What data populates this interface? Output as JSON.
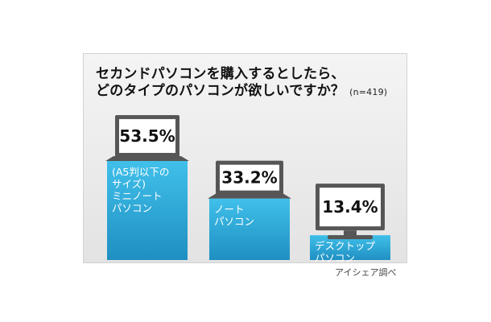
{
  "title_line1": "セカンドパソコンを購入するとしたら、",
  "title_line2": "どのタイプのパソコンが欲しいですか？",
  "sample_size": "(n=419)",
  "source": "アイシェア調べ",
  "colors": {
    "bar_top": "#40c0ea",
    "bar_bottom": "#1f8fc2",
    "device_body": "#565656",
    "screen": "#ffffff"
  },
  "chart_data": {
    "type": "bar",
    "title": "セカンドパソコンを購入するとしたら、どのタイプのパソコンが欲しいですか？",
    "categories": [
      "(A5判以下のサイズ) ミニノートパソコン",
      "ノートパソコン",
      "デスクトップパソコン"
    ],
    "values": [
      53.5,
      33.2,
      13.4
    ],
    "value_labels": [
      "53.5%",
      "33.2%",
      "13.4%"
    ],
    "label_lines": [
      [
        "(A5判以下の",
        "サイズ)",
        "ミニノート",
        "パソコン"
      ],
      [
        "ノート",
        "パソコン"
      ],
      [
        "デスクトップ",
        "パソコン"
      ]
    ],
    "icons": [
      "mini-laptop-icon",
      "laptop-icon",
      "desktop-monitor-icon"
    ],
    "unit": "%",
    "ylim": [
      0,
      100
    ],
    "grid": false,
    "legend": "none"
  }
}
